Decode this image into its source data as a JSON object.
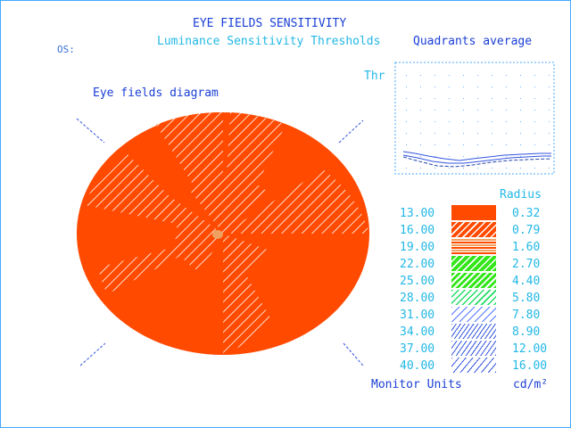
{
  "header": {
    "title": "EYE FIELDS SENSITIVITY",
    "subtitle": "Luminance Sensitivity Thresholds",
    "eye_label": "OS:",
    "quadrants_title": "Quadrants average",
    "diagram_title": "Eye fields diagram",
    "thr_label": "Thr"
  },
  "legend": {
    "radius_header": "Radius",
    "units_label": "Monitor Units",
    "cd_label": "cd/m²",
    "rows": [
      {
        "value": "13.00",
        "radius": "0.32",
        "pattern": "solid-orange"
      },
      {
        "value": "16.00",
        "radius": "0.79",
        "pattern": "hatch-orange"
      },
      {
        "value": "19.00",
        "radius": "1.60",
        "pattern": "orange-stripes"
      },
      {
        "value": "22.00",
        "radius": "2.70",
        "pattern": "hatch-green"
      },
      {
        "value": "25.00",
        "radius": "4.40",
        "pattern": "green-stripes"
      },
      {
        "value": "28.00",
        "radius": "5.80",
        "pattern": "sparse-green"
      },
      {
        "value": "31.00",
        "radius": "7.80",
        "pattern": "sparse-blue"
      },
      {
        "value": "34.00",
        "radius": "8.90",
        "pattern": "blue-hatch"
      },
      {
        "value": "37.00",
        "radius": "12.00",
        "pattern": "blue-hatch-2"
      },
      {
        "value": "40.00",
        "radius": "16.00",
        "pattern": "blue-dash"
      }
    ]
  },
  "colors": {
    "accent_blue": "#1a3fd6",
    "accent_cyan": "#22b8e6",
    "field_orange": "#ff4a00",
    "hatch_green": "#33e61a",
    "mid_orange": "#f0a060"
  }
}
